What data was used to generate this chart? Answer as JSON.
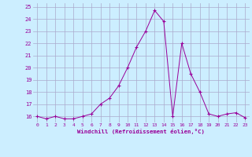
{
  "x": [
    0,
    1,
    2,
    3,
    4,
    5,
    6,
    7,
    8,
    9,
    10,
    11,
    12,
    13,
    14,
    15,
    16,
    17,
    18,
    19,
    20,
    21,
    22,
    23
  ],
  "y": [
    16,
    15.8,
    16,
    15.8,
    15.8,
    16,
    16.2,
    17,
    17.5,
    18.5,
    20,
    21.7,
    23,
    24.7,
    23.8,
    16,
    22,
    19.5,
    18,
    16.2,
    16,
    16.2,
    16.3,
    15.9
  ],
  "line_color": "#990099",
  "marker_color": "#990099",
  "bg_color": "#cceeff",
  "grid_color": "#aaaacc",
  "xlabel": "Windchill (Refroidissement éolien,°C)",
  "xlim": [
    -0.5,
    23.5
  ],
  "ylim": [
    15.5,
    25.3
  ],
  "yticks": [
    16,
    17,
    18,
    19,
    20,
    21,
    22,
    23,
    24,
    25
  ],
  "xticks": [
    0,
    1,
    2,
    3,
    4,
    5,
    6,
    7,
    8,
    9,
    10,
    11,
    12,
    13,
    14,
    15,
    16,
    17,
    18,
    19,
    20,
    21,
    22,
    23
  ],
  "xlabel_color": "#990099",
  "tick_color": "#990099"
}
